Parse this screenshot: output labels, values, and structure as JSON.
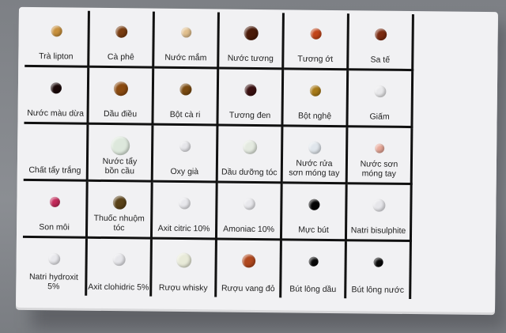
{
  "samples": [
    {
      "label": "Trà lipton",
      "color": "#c8903c",
      "size": 14
    },
    {
      "label": "Cà phê",
      "color": "#7a3d10",
      "size": 15
    },
    {
      "label": "Nước mắm",
      "color": "#e2c08e",
      "size": 13
    },
    {
      "label": "Nước tương",
      "color": "#4a1a08",
      "size": 18
    },
    {
      "label": "Tương ớt",
      "color": "#c2451a",
      "size": 14
    },
    {
      "label": "Sa tế",
      "color": "#7a2a10",
      "size": 15
    },
    {
      "label": "Nước màu dừa",
      "color": "#1a0808",
      "size": 14
    },
    {
      "label": "Dầu điều",
      "color": "#8a4a10",
      "size": 18
    },
    {
      "label": "Bột cà ri",
      "color": "#7a4a10",
      "size": 15
    },
    {
      "label": "Tương đen",
      "color": "#3a1010",
      "size": 15
    },
    {
      "label": "Bột nghệ",
      "color": "#a87a18",
      "size": 14
    },
    {
      "label": "Giấm",
      "color": "#e8e8ea",
      "size": 15
    },
    {
      "label": "Chất tẩy trắng",
      "color": "#efefef",
      "size": 0
    },
    {
      "label": "Nước tẩy\nbồn cầu",
      "color": "#dde8dc",
      "size": 24
    },
    {
      "label": "Oxy già",
      "color": "#e6e6ea",
      "size": 14
    },
    {
      "label": "Dầu dưỡng tóc",
      "color": "#e4eae0",
      "size": 18
    },
    {
      "label": "Nước rửa\nsơn móng tay",
      "color": "#e0e6ec",
      "size": 16
    },
    {
      "label": "Nước sơn\nmóng tay",
      "color": "#e8a898",
      "size": 12
    },
    {
      "label": "Son môi",
      "color": "#c42a5a",
      "size": 13
    },
    {
      "label": "Thuốc nhuộm tóc",
      "color": "#5a4218",
      "size": 17
    },
    {
      "label": "Axit citric 10%",
      "color": "#e8e8ec",
      "size": 15
    },
    {
      "label": "Amoniac 10%",
      "color": "#e8e8ec",
      "size": 15
    },
    {
      "label": "Mực bút",
      "color": "#050505",
      "size": 14
    },
    {
      "label": "Natri bisulphite",
      "color": "#e6e6ea",
      "size": 16
    },
    {
      "label": "Natri hydroxit 5%",
      "color": "#e8e8ec",
      "size": 15
    },
    {
      "label": "Axit clohidric 5%",
      "color": "#e6e6ea",
      "size": 16
    },
    {
      "label": "Rượu whisky",
      "color": "#e8ead8",
      "size": 19
    },
    {
      "label": "Rượu vang đỏ",
      "color": "#b0481e",
      "size": 17
    },
    {
      "label": "Bút lông dầu",
      "color": "#0a0a0a",
      "size": 12
    },
    {
      "label": "Bút lông nước",
      "color": "#0a0a0a",
      "size": 12
    }
  ]
}
